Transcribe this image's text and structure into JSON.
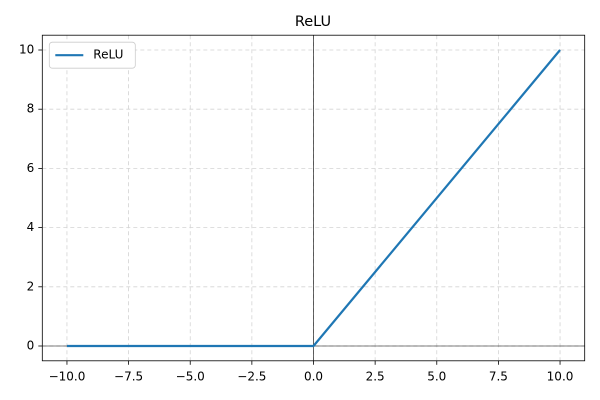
{
  "chart_data": {
    "type": "line",
    "title": "ReLU",
    "x": [
      -10,
      0,
      10
    ],
    "series": [
      {
        "name": "ReLU",
        "color": "#1f77b4",
        "values": [
          0,
          0,
          10
        ]
      }
    ],
    "xlim": [
      -11,
      11
    ],
    "xticks": [
      {
        "value": -10,
        "label": "−10.0"
      },
      {
        "value": -7.5,
        "label": "−7.5"
      },
      {
        "value": -5,
        "label": "−5.0"
      },
      {
        "value": -2.5,
        "label": "−2.5"
      },
      {
        "value": 0,
        "label": "0.0"
      },
      {
        "value": 2.5,
        "label": "2.5"
      },
      {
        "value": 5,
        "label": "5.0"
      },
      {
        "value": 7.5,
        "label": "7.5"
      },
      {
        "value": 10,
        "label": "10.0"
      }
    ],
    "ylim": [
      -0.5,
      10.5
    ],
    "yticks": [
      0,
      2,
      4,
      6,
      8,
      10
    ],
    "grid": true,
    "legend": "upper left"
  }
}
